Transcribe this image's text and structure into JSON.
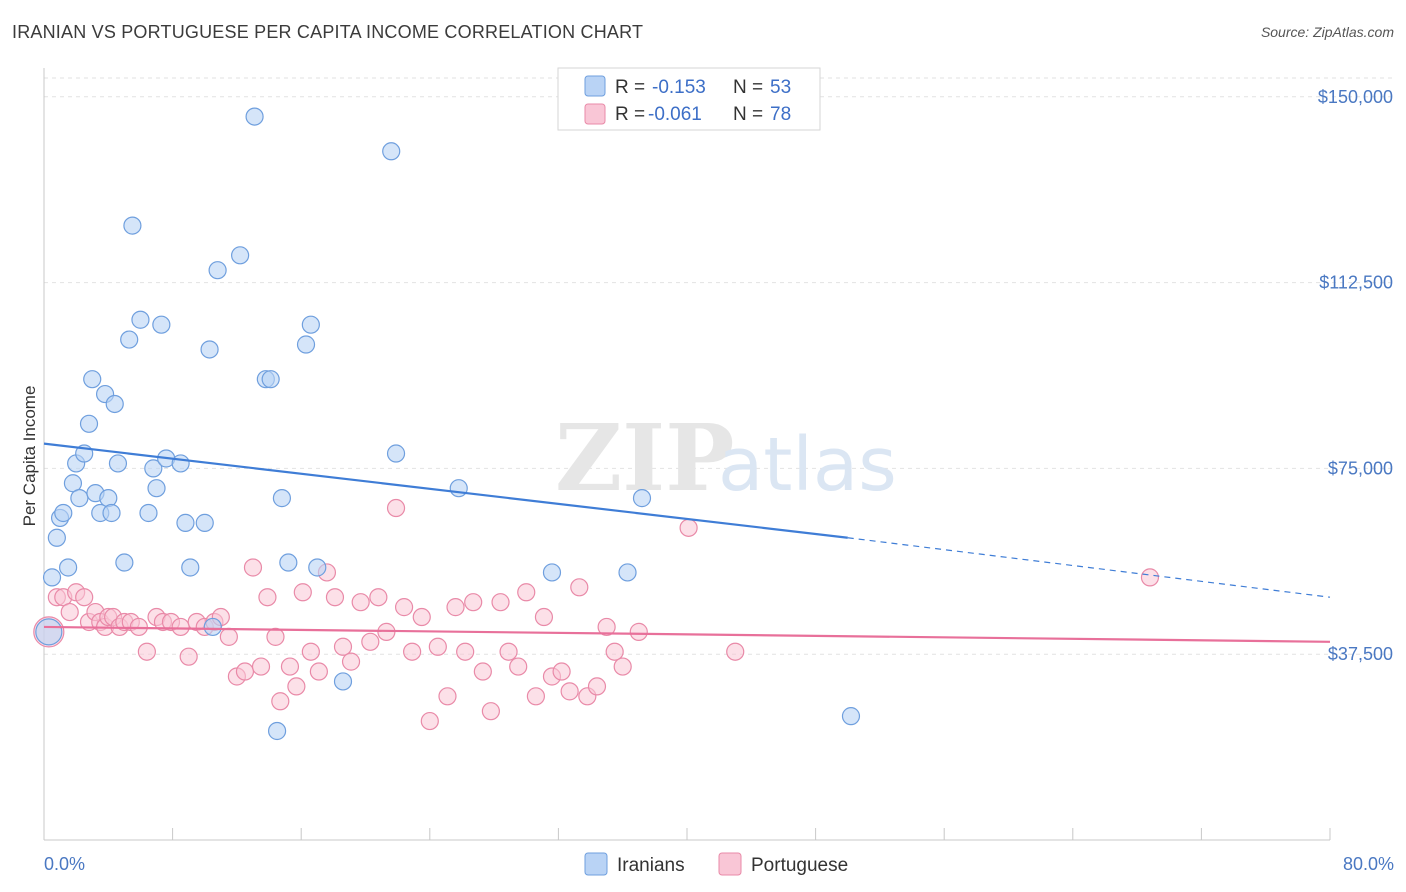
{
  "title": "IRANIAN VS PORTUGUESE PER CAPITA INCOME CORRELATION CHART",
  "source": "Source: ZipAtlas.com",
  "watermark": {
    "zip": "ZIP",
    "atlas": "atlas"
  },
  "colors": {
    "iranians_fill": "#b9d3f5",
    "iranians_stroke": "#6f9fde",
    "iranians_line": "#3f7dd6",
    "portuguese_fill": "#f9c6d6",
    "portuguese_stroke": "#e98aa8",
    "portuguese_line": "#e8709a",
    "axis_label": "#4a78c2",
    "grid": "#e2e2e2"
  },
  "legend": {
    "rows": [
      {
        "r_label": "R =",
        "r_value": "-0.153",
        "n_label": "N =",
        "n_value": "53"
      },
      {
        "r_label": "R =",
        "r_value": "-0.061",
        "n_label": "N =",
        "n_value": "78"
      }
    ]
  },
  "chart_data": {
    "type": "scatter",
    "xlabel": "",
    "ylabel": "Per Capita Income",
    "xlim": [
      0,
      80
    ],
    "ylim": [
      0,
      155000
    ],
    "x_tick_labels": [
      "0.0%",
      "80.0%"
    ],
    "y_ticks": [
      37500,
      75000,
      112500,
      150000
    ],
    "y_tick_labels": [
      "$37,500",
      "$75,000",
      "$112,500",
      "$150,000"
    ],
    "grid": true,
    "legend_position": "top-center",
    "series": [
      {
        "name": "Iranians",
        "points": [
          [
            0.5,
            53000
          ],
          [
            0.8,
            61000
          ],
          [
            1.0,
            65000
          ],
          [
            1.2,
            66000
          ],
          [
            1.5,
            55000
          ],
          [
            1.8,
            72000
          ],
          [
            2.0,
            76000
          ],
          [
            2.2,
            69000
          ],
          [
            2.5,
            78000
          ],
          [
            2.8,
            84000
          ],
          [
            3.0,
            93000
          ],
          [
            3.2,
            70000
          ],
          [
            3.5,
            66000
          ],
          [
            3.8,
            90000
          ],
          [
            4.0,
            69000
          ],
          [
            4.2,
            66000
          ],
          [
            4.4,
            88000
          ],
          [
            4.6,
            76000
          ],
          [
            5.0,
            56000
          ],
          [
            5.3,
            101000
          ],
          [
            5.5,
            124000
          ],
          [
            6.0,
            105000
          ],
          [
            6.5,
            66000
          ],
          [
            6.8,
            75000
          ],
          [
            7.0,
            71000
          ],
          [
            7.3,
            104000
          ],
          [
            7.6,
            77000
          ],
          [
            8.5,
            76000
          ],
          [
            8.8,
            64000
          ],
          [
            9.1,
            55000
          ],
          [
            10.0,
            64000
          ],
          [
            10.3,
            99000
          ],
          [
            10.5,
            43000
          ],
          [
            10.8,
            115000
          ],
          [
            12.2,
            118000
          ],
          [
            13.1,
            146000
          ],
          [
            13.8,
            93000
          ],
          [
            14.1,
            93000
          ],
          [
            14.5,
            22000
          ],
          [
            14.8,
            69000
          ],
          [
            15.2,
            56000
          ],
          [
            16.3,
            100000
          ],
          [
            16.6,
            104000
          ],
          [
            17.0,
            55000
          ],
          [
            18.6,
            32000
          ],
          [
            21.6,
            139000
          ],
          [
            21.9,
            78000
          ],
          [
            25.8,
            71000
          ],
          [
            31.6,
            54000
          ],
          [
            36.3,
            54000
          ],
          [
            37.2,
            69000
          ],
          [
            50.2,
            25000
          ],
          [
            0.3,
            42000
          ]
        ]
      },
      {
        "name": "Portuguese",
        "points": [
          [
            0.3,
            42000
          ],
          [
            0.8,
            49000
          ],
          [
            1.2,
            49000
          ],
          [
            1.6,
            46000
          ],
          [
            2.0,
            50000
          ],
          [
            2.5,
            49000
          ],
          [
            2.8,
            44000
          ],
          [
            3.2,
            46000
          ],
          [
            3.5,
            44000
          ],
          [
            3.8,
            43000
          ],
          [
            4.0,
            45000
          ],
          [
            4.3,
            45000
          ],
          [
            4.7,
            43000
          ],
          [
            5.0,
            44000
          ],
          [
            5.4,
            44000
          ],
          [
            5.9,
            43000
          ],
          [
            6.4,
            38000
          ],
          [
            7.0,
            45000
          ],
          [
            7.4,
            44000
          ],
          [
            7.9,
            44000
          ],
          [
            8.5,
            43000
          ],
          [
            9.0,
            37000
          ],
          [
            9.5,
            44000
          ],
          [
            10.0,
            43000
          ],
          [
            10.6,
            44000
          ],
          [
            11.0,
            45000
          ],
          [
            11.5,
            41000
          ],
          [
            12.0,
            33000
          ],
          [
            12.5,
            34000
          ],
          [
            13.0,
            55000
          ],
          [
            13.5,
            35000
          ],
          [
            13.9,
            49000
          ],
          [
            14.4,
            41000
          ],
          [
            14.7,
            28000
          ],
          [
            15.3,
            35000
          ],
          [
            15.7,
            31000
          ],
          [
            16.1,
            50000
          ],
          [
            16.6,
            38000
          ],
          [
            17.1,
            34000
          ],
          [
            17.6,
            54000
          ],
          [
            18.1,
            49000
          ],
          [
            18.6,
            39000
          ],
          [
            19.1,
            36000
          ],
          [
            19.7,
            48000
          ],
          [
            20.3,
            40000
          ],
          [
            20.8,
            49000
          ],
          [
            21.3,
            42000
          ],
          [
            21.9,
            67000
          ],
          [
            22.4,
            47000
          ],
          [
            22.9,
            38000
          ],
          [
            23.5,
            45000
          ],
          [
            24.0,
            24000
          ],
          [
            24.5,
            39000
          ],
          [
            25.1,
            29000
          ],
          [
            25.6,
            47000
          ],
          [
            26.2,
            38000
          ],
          [
            26.7,
            48000
          ],
          [
            27.3,
            34000
          ],
          [
            27.8,
            26000
          ],
          [
            28.4,
            48000
          ],
          [
            28.9,
            38000
          ],
          [
            29.5,
            35000
          ],
          [
            30.0,
            50000
          ],
          [
            30.6,
            29000
          ],
          [
            31.1,
            45000
          ],
          [
            31.6,
            33000
          ],
          [
            32.2,
            34000
          ],
          [
            32.7,
            30000
          ],
          [
            33.3,
            51000
          ],
          [
            33.8,
            29000
          ],
          [
            34.4,
            31000
          ],
          [
            35.0,
            43000
          ],
          [
            35.5,
            38000
          ],
          [
            36.0,
            35000
          ],
          [
            37.0,
            42000
          ],
          [
            40.1,
            63000
          ],
          [
            43.0,
            38000
          ],
          [
            68.8,
            53000
          ]
        ]
      }
    ],
    "trend_lines": [
      {
        "series": "Iranians",
        "solid": [
          [
            0,
            80000
          ],
          [
            50,
            61000
          ]
        ],
        "dashed": [
          [
            50,
            61000
          ],
          [
            80,
            49000
          ]
        ]
      },
      {
        "series": "Portuguese",
        "solid": [
          [
            0,
            43000
          ],
          [
            80,
            40000
          ]
        ]
      }
    ]
  }
}
